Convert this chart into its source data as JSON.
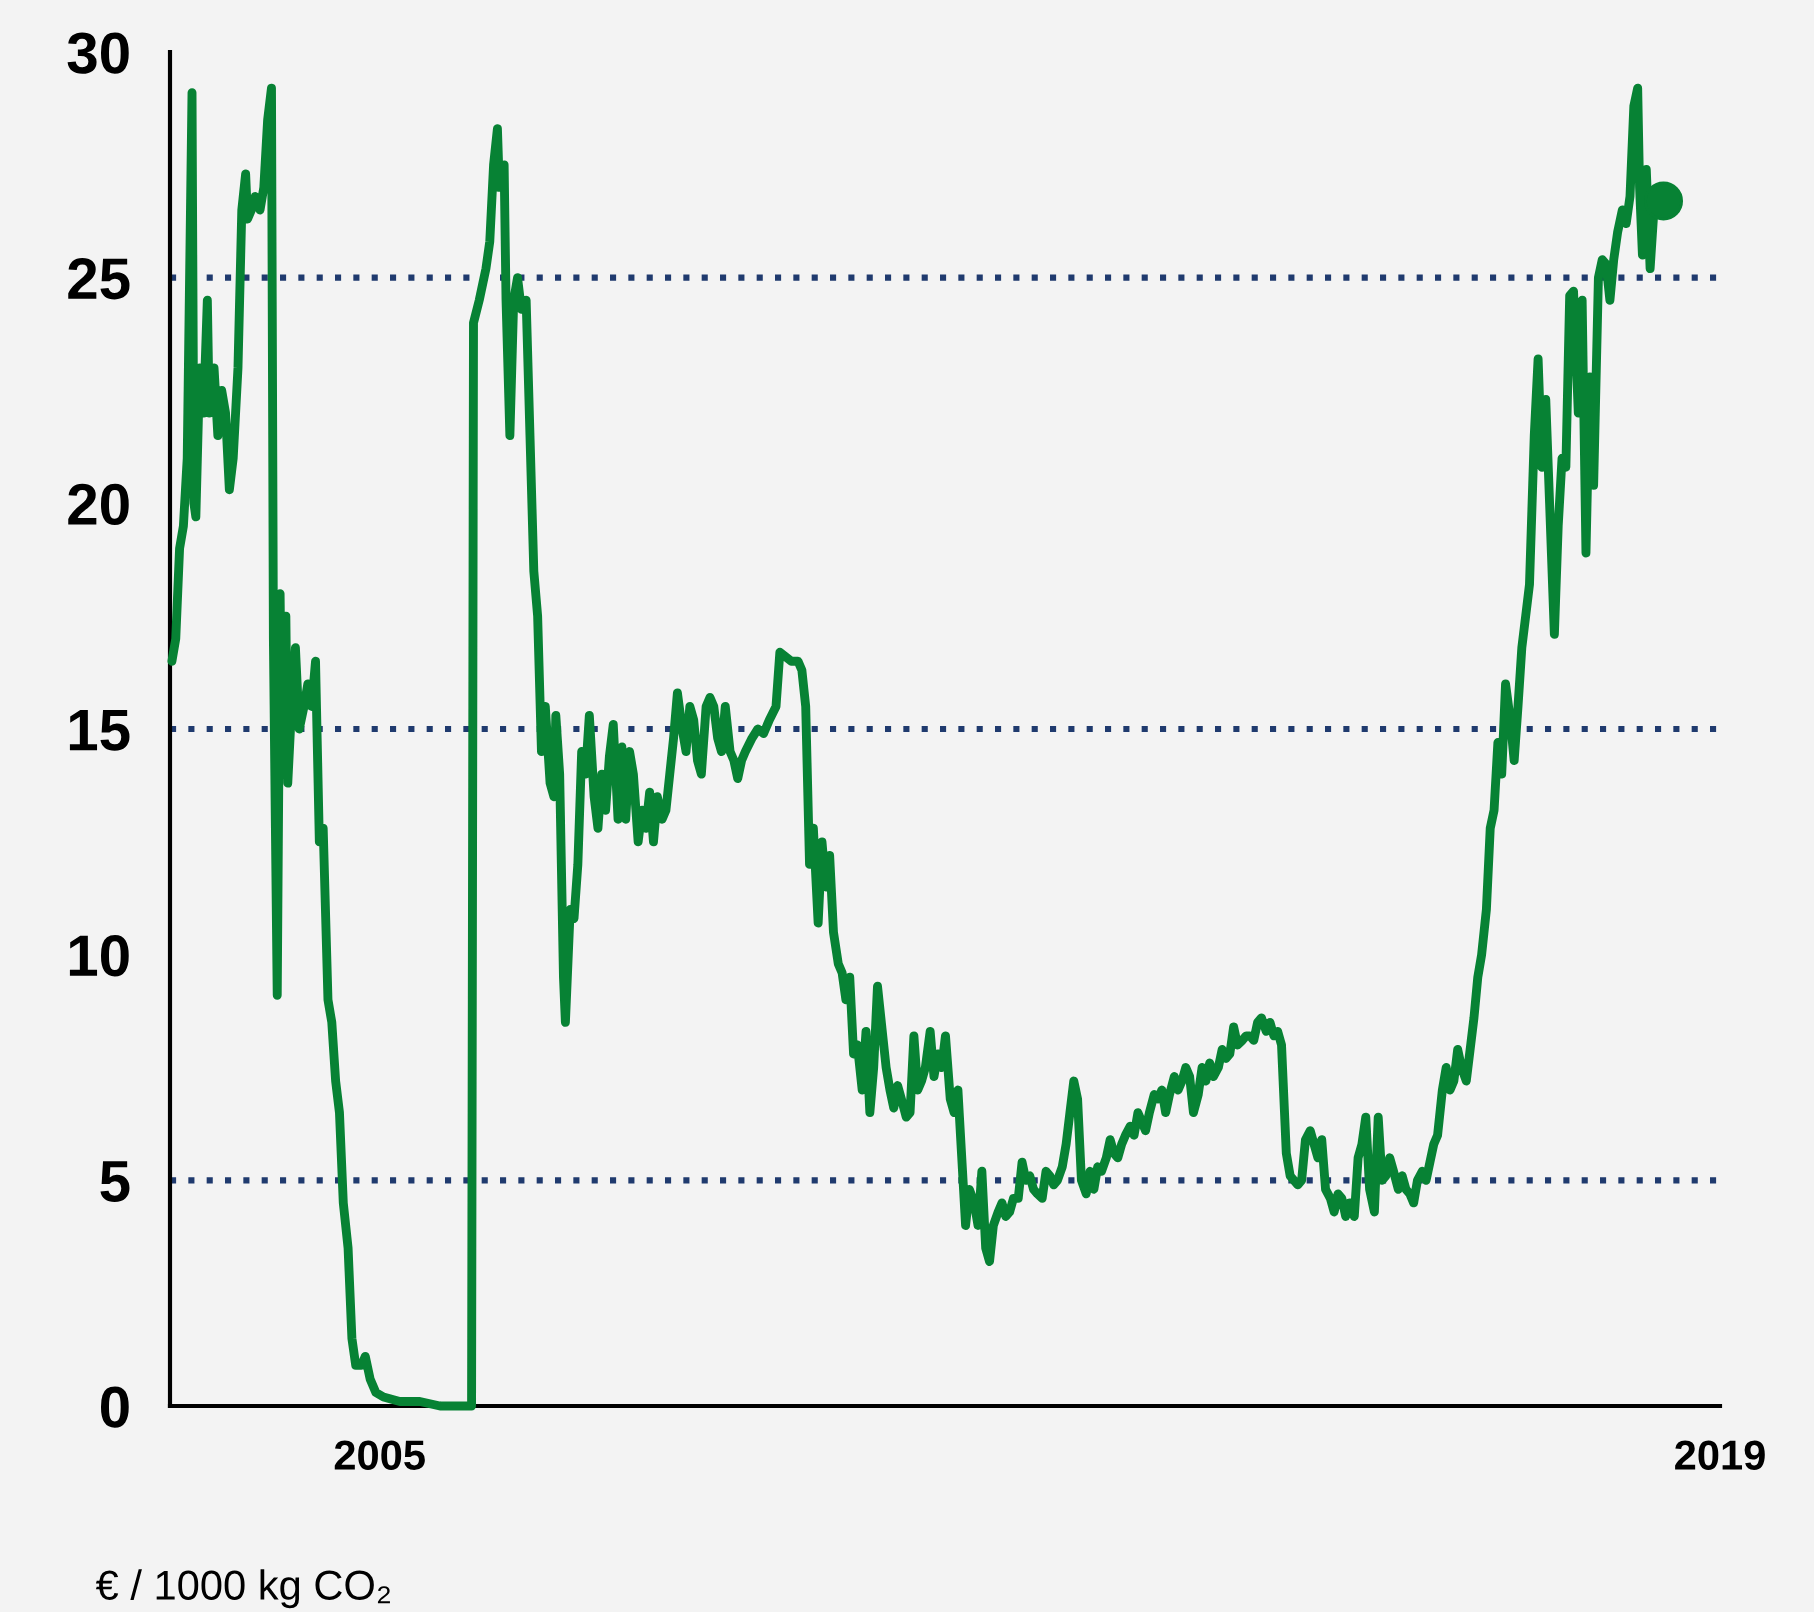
{
  "chart_data": {
    "type": "line",
    "ylabel": "€ / 1000 kg CO₂",
    "xlim": [
      2002.81,
      2019
    ],
    "xticks": [
      2005,
      2019
    ],
    "ylim": [
      0,
      30
    ],
    "yticks": [
      0,
      5,
      10,
      15,
      20,
      25,
      30
    ],
    "grid": false,
    "legend": false,
    "line_style": "solid",
    "marker": "none",
    "ref_lines": [
      {
        "axis": "y",
        "value": 5,
        "color": "#1f3a6e",
        "line_style": "dotted"
      },
      {
        "axis": "y",
        "value": 15,
        "color": "#1f3a6e",
        "line_style": "dotted"
      },
      {
        "axis": "y",
        "value": 25,
        "color": "#1f3a6e",
        "line_style": "dotted"
      }
    ],
    "series": [
      {
        "color": "#078234",
        "x": [
          2002.83,
          2002.87,
          2002.91,
          2002.95,
          2002.99,
          2003.04,
          2003.06,
          2003.08,
          2003.12,
          2003.16,
          2003.2,
          2003.22,
          2003.27,
          2003.31,
          2003.35,
          2003.39,
          2003.43,
          2003.47,
          2003.52,
          2003.56,
          2003.6,
          2003.62,
          2003.66,
          2003.7,
          2003.75,
          2003.79,
          2003.83,
          2003.87,
          2003.89,
          2003.91,
          2003.93,
          2003.96,
          2003.98,
          2004.02,
          2004.04,
          2004.08,
          2004.12,
          2004.16,
          2004.21,
          2004.25,
          2004.29,
          2004.33,
          2004.37,
          2004.41,
          2004.46,
          2004.5,
          2004.54,
          2004.58,
          2004.62,
          2004.67,
          2004.71,
          2004.75,
          2004.81,
          2004.85,
          2004.9,
          2004.96,
          2005.04,
          2005.21,
          2005.42,
          2005.63,
          2005.84,
          2005.96,
          2005.98,
          2006.04,
          2006.11,
          2006.15,
          2006.19,
          2006.23,
          2006.25,
          2006.3,
          2006.32,
          2006.36,
          2006.4,
          2006.44,
          2006.48,
          2006.53,
          2006.57,
          2006.61,
          2006.65,
          2006.69,
          2006.73,
          2006.78,
          2006.82,
          2006.84,
          2006.88,
          2006.92,
          2006.94,
          2006.99,
          2007.03,
          2007.07,
          2007.11,
          2007.15,
          2007.19,
          2007.24,
          2007.28,
          2007.32,
          2007.36,
          2007.4,
          2007.44,
          2007.49,
          2007.53,
          2007.57,
          2007.61,
          2007.65,
          2007.7,
          2007.74,
          2007.78,
          2007.82,
          2007.86,
          2007.9,
          2007.95,
          2007.99,
          2008.03,
          2008.07,
          2008.11,
          2008.16,
          2008.2,
          2008.24,
          2008.28,
          2008.32,
          2008.36,
          2008.41,
          2008.45,
          2008.49,
          2008.53,
          2008.57,
          2008.61,
          2008.66,
          2008.7,
          2008.74,
          2008.78,
          2008.82,
          2008.89,
          2008.95,
          2009.01,
          2009.07,
          2009.14,
          2009.18,
          2009.24,
          2009.3,
          2009.37,
          2009.41,
          2009.45,
          2009.49,
          2009.53,
          2009.58,
          2009.62,
          2009.66,
          2009.7,
          2009.74,
          2009.79,
          2009.83,
          2009.87,
          2009.91,
          2009.95,
          2009.99,
          2010.04,
          2010.08,
          2010.12,
          2010.16,
          2010.2,
          2010.24,
          2010.29,
          2010.33,
          2010.37,
          2010.41,
          2010.45,
          2010.5,
          2010.54,
          2010.58,
          2010.62,
          2010.66,
          2010.7,
          2010.75,
          2010.79,
          2010.83,
          2010.87,
          2010.91,
          2010.96,
          2011.0,
          2011.04,
          2011.08,
          2011.12,
          2011.16,
          2011.21,
          2011.25,
          2011.29,
          2011.33,
          2011.37,
          2011.41,
          2011.46,
          2011.5,
          2011.54,
          2011.58,
          2011.62,
          2011.67,
          2011.71,
          2011.75,
          2011.79,
          2011.83,
          2011.87,
          2011.92,
          2011.96,
          2012.0,
          2012.04,
          2012.08,
          2012.13,
          2012.17,
          2012.21,
          2012.25,
          2012.29,
          2012.33,
          2012.38,
          2012.42,
          2012.46,
          2012.5,
          2012.54,
          2012.59,
          2012.63,
          2012.67,
          2012.71,
          2012.75,
          2012.79,
          2012.84,
          2012.88,
          2012.92,
          2012.96,
          2013.0,
          2013.04,
          2013.09,
          2013.13,
          2013.17,
          2013.21,
          2013.25,
          2013.3,
          2013.34,
          2013.38,
          2013.42,
          2013.46,
          2013.5,
          2013.55,
          2013.59,
          2013.63,
          2013.67,
          2013.71,
          2013.76,
          2013.8,
          2013.84,
          2013.88,
          2013.92,
          2013.96,
          2014.01,
          2014.05,
          2014.09,
          2014.13,
          2014.17,
          2014.21,
          2014.26,
          2014.3,
          2014.34,
          2014.38,
          2014.42,
          2014.47,
          2014.51,
          2014.55,
          2014.59,
          2014.63,
          2014.67,
          2014.72,
          2014.76,
          2014.8,
          2014.84,
          2014.88,
          2014.93,
          2014.97,
          2015.01,
          2015.05,
          2015.09,
          2015.13,
          2015.18,
          2015.22,
          2015.26,
          2015.3,
          2015.34,
          2015.39,
          2015.43,
          2015.47,
          2015.51,
          2015.55,
          2015.59,
          2015.64,
          2015.68,
          2015.72,
          2015.76,
          2015.8,
          2015.84,
          2015.89,
          2015.93,
          2015.97,
          2016.01,
          2016.05,
          2016.1,
          2016.14,
          2016.18,
          2016.22,
          2016.26,
          2016.3,
          2016.35,
          2016.39,
          2016.43,
          2016.47,
          2016.51,
          2016.56,
          2016.6,
          2016.64,
          2016.68,
          2016.72,
          2016.76,
          2016.81,
          2016.85,
          2016.89,
          2016.93,
          2016.97,
          2017.01,
          2017.06,
          2017.1,
          2017.14,
          2017.18,
          2017.22,
          2017.27,
          2017.31,
          2017.35,
          2017.39,
          2017.43,
          2017.47,
          2017.52,
          2017.56,
          2017.6,
          2017.64,
          2017.68,
          2017.73,
          2017.77,
          2017.81,
          2017.85,
          2017.89,
          2017.93,
          2017.98,
          2018.02,
          2018.06,
          2018.1,
          2018.14,
          2018.16,
          2018.19,
          2018.23,
          2018.27,
          2018.31,
          2018.41
        ],
        "values": [
          16.5,
          17,
          19,
          19.5,
          21,
          29.1,
          20,
          19.7,
          23,
          22,
          24.5,
          22,
          23,
          21.5,
          22.5,
          22,
          20.3,
          21,
          23,
          26.5,
          27.3,
          26.3,
          26.5,
          26.8,
          26.5,
          27,
          28.5,
          29.2,
          17,
          13,
          9.1,
          18,
          14,
          17.5,
          13.8,
          15.5,
          16.8,
          15,
          15.5,
          16,
          15.5,
          16.5,
          12.5,
          12.8,
          9,
          8.5,
          7.2,
          6.5,
          4.5,
          3.5,
          1.5,
          0.9,
          0.9,
          1.1,
          0.6,
          0.3,
          0.2,
          0.1,
          0.1,
          0,
          0,
          0,
          24,
          24.5,
          25.2,
          25.8,
          27.5,
          28.3,
          27,
          27.5,
          24.5,
          21.5,
          24.5,
          25,
          24.3,
          24.5,
          21.5,
          18.5,
          17.5,
          14.5,
          15.5,
          13.8,
          13.5,
          15.3,
          14,
          9.5,
          8.5,
          11,
          10.8,
          12,
          14.5,
          14,
          15.3,
          13.5,
          12.8,
          14,
          13.2,
          14.4,
          15.1,
          13,
          14.6,
          13,
          14.5,
          14,
          12.5,
          13.2,
          12.8,
          13.6,
          12.5,
          13.5,
          13,
          13.2,
          14,
          14.8,
          15.8,
          15,
          14.5,
          15.5,
          15.2,
          14.3,
          14,
          15.5,
          15.7,
          15.5,
          14.8,
          14.5,
          15.5,
          14.5,
          14.3,
          13.9,
          14.3,
          14.5,
          14.8,
          15,
          14.9,
          15.2,
          15.5,
          16.7,
          16.6,
          16.5,
          16.5,
          16.3,
          15.5,
          12,
          12.8,
          10.7,
          12.5,
          11.5,
          12.2,
          10.5,
          9.8,
          9.6,
          9,
          9.5,
          7.8,
          8,
          7,
          8.3,
          6.5,
          7.5,
          9.3,
          8.5,
          7.5,
          7,
          6.6,
          7.1,
          6.8,
          6.4,
          6.5,
          8.2,
          7,
          7.2,
          7.5,
          8.3,
          7.3,
          7.8,
          7.5,
          8.2,
          6.8,
          6.5,
          7,
          5.5,
          4,
          4.8,
          4.5,
          4,
          5.2,
          3.5,
          3.2,
          4,
          4.3,
          4.5,
          4.2,
          4.3,
          4.6,
          4.6,
          5.4,
          5,
          5.1,
          4.8,
          4.7,
          4.6,
          5.2,
          5.1,
          4.9,
          5,
          5.3,
          5.8,
          6.5,
          7.2,
          6.8,
          5,
          4.7,
          5.2,
          4.8,
          5.3,
          5.2,
          5.5,
          5.9,
          5.6,
          5.5,
          5.8,
          6,
          6.2,
          6,
          6.5,
          6.3,
          6.1,
          6.5,
          6.9,
          6.8,
          7,
          6.5,
          6.9,
          7.3,
          7,
          7.2,
          7.5,
          7.3,
          6.5,
          6.9,
          7.5,
          7.2,
          7.6,
          7.3,
          7.5,
          7.9,
          7.7,
          7.8,
          8.4,
          8,
          8.1,
          8.2,
          8.2,
          8.1,
          8.5,
          8.6,
          8.3,
          8.5,
          8.2,
          8.3,
          8,
          5.6,
          5.1,
          5,
          4.9,
          5,
          5.9,
          6.1,
          5.8,
          5.5,
          5.9,
          4.8,
          4.6,
          4.3,
          4.7,
          4.6,
          4.2,
          4.5,
          4.2,
          5.5,
          5.8,
          6.4,
          4.8,
          4.3,
          6.4,
          5,
          5.1,
          5.5,
          5.2,
          4.8,
          5.1,
          4.8,
          4.7,
          4.5,
          5,
          5.2,
          5,
          5.4,
          5.8,
          6,
          7,
          7.5,
          7,
          7.2,
          7.9,
          7.5,
          7.2,
          7.9,
          8.6,
          9.5,
          10,
          11,
          12.8,
          13.2,
          14.7,
          14,
          16,
          15.2,
          14.3,
          15.5,
          16.8,
          17.5,
          18.2,
          21.5,
          23.2,
          20.8,
          22.3,
          20,
          17.1,
          19.5,
          21,
          20.8,
          24.6,
          24.7,
          22,
          24.5,
          18.9,
          22.8,
          20.4,
          25,
          25.4,
          25.3,
          24.5,
          25.4,
          26,
          26.5,
          26.2,
          26.8,
          28.8,
          29.2,
          27,
          25.5,
          27.4,
          25.2,
          26.5,
          26.7
        ]
      },
      {
        "type": "scatter",
        "marker": "circle",
        "color": "#078234",
        "x": [
          2018.41
        ],
        "values": [
          26.7
        ]
      }
    ]
  }
}
